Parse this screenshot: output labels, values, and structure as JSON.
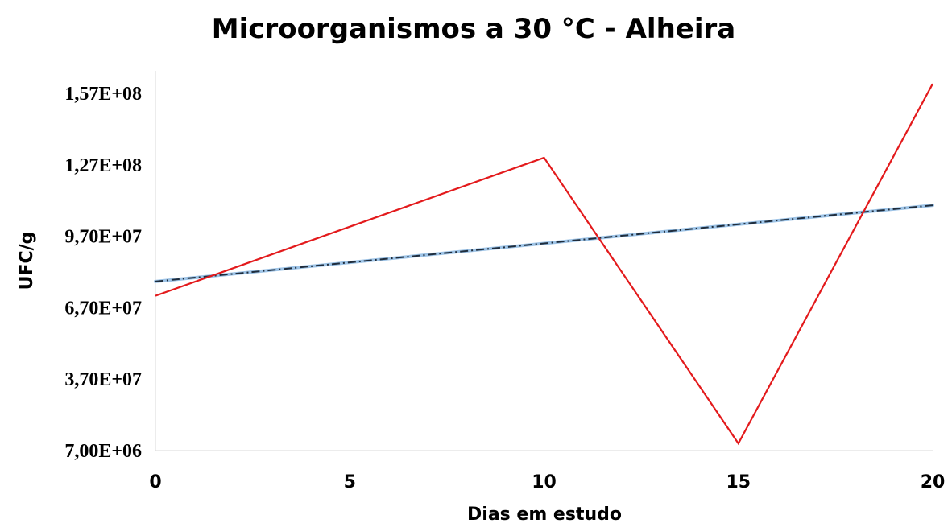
{
  "chart_data": {
    "type": "line",
    "title": "Microorganismos a 30 °C - Alheira",
    "xlabel": "Dias em estudo",
    "ylabel": "UFC/g",
    "x": [
      0,
      10,
      15,
      20
    ],
    "xticks": [
      0,
      5,
      10,
      15,
      20
    ],
    "xlim": [
      0,
      20
    ],
    "yticks": [
      7000000,
      37000000,
      67000000,
      97000000,
      127000000,
      157000000
    ],
    "ytick_labels": [
      "7,00E+06",
      "3,70E+07",
      "6,70E+07",
      "9,70E+07",
      "1,27E+08",
      "1,57E+08"
    ],
    "ylim": [
      7000000,
      157000000
    ],
    "series": [
      {
        "values": [
          72000000.0,
          130000000.0,
          10000000.0,
          161000000.0
        ],
        "color": "#e31a1c",
        "style": "solid"
      }
    ],
    "trendline": {
      "type": "linear",
      "x": [
        0,
        20
      ],
      "values": [
        78000000.0,
        110000000.0
      ],
      "color": "#1f2d3d",
      "style": "dash-dot"
    },
    "grid": false,
    "legend": "none"
  }
}
